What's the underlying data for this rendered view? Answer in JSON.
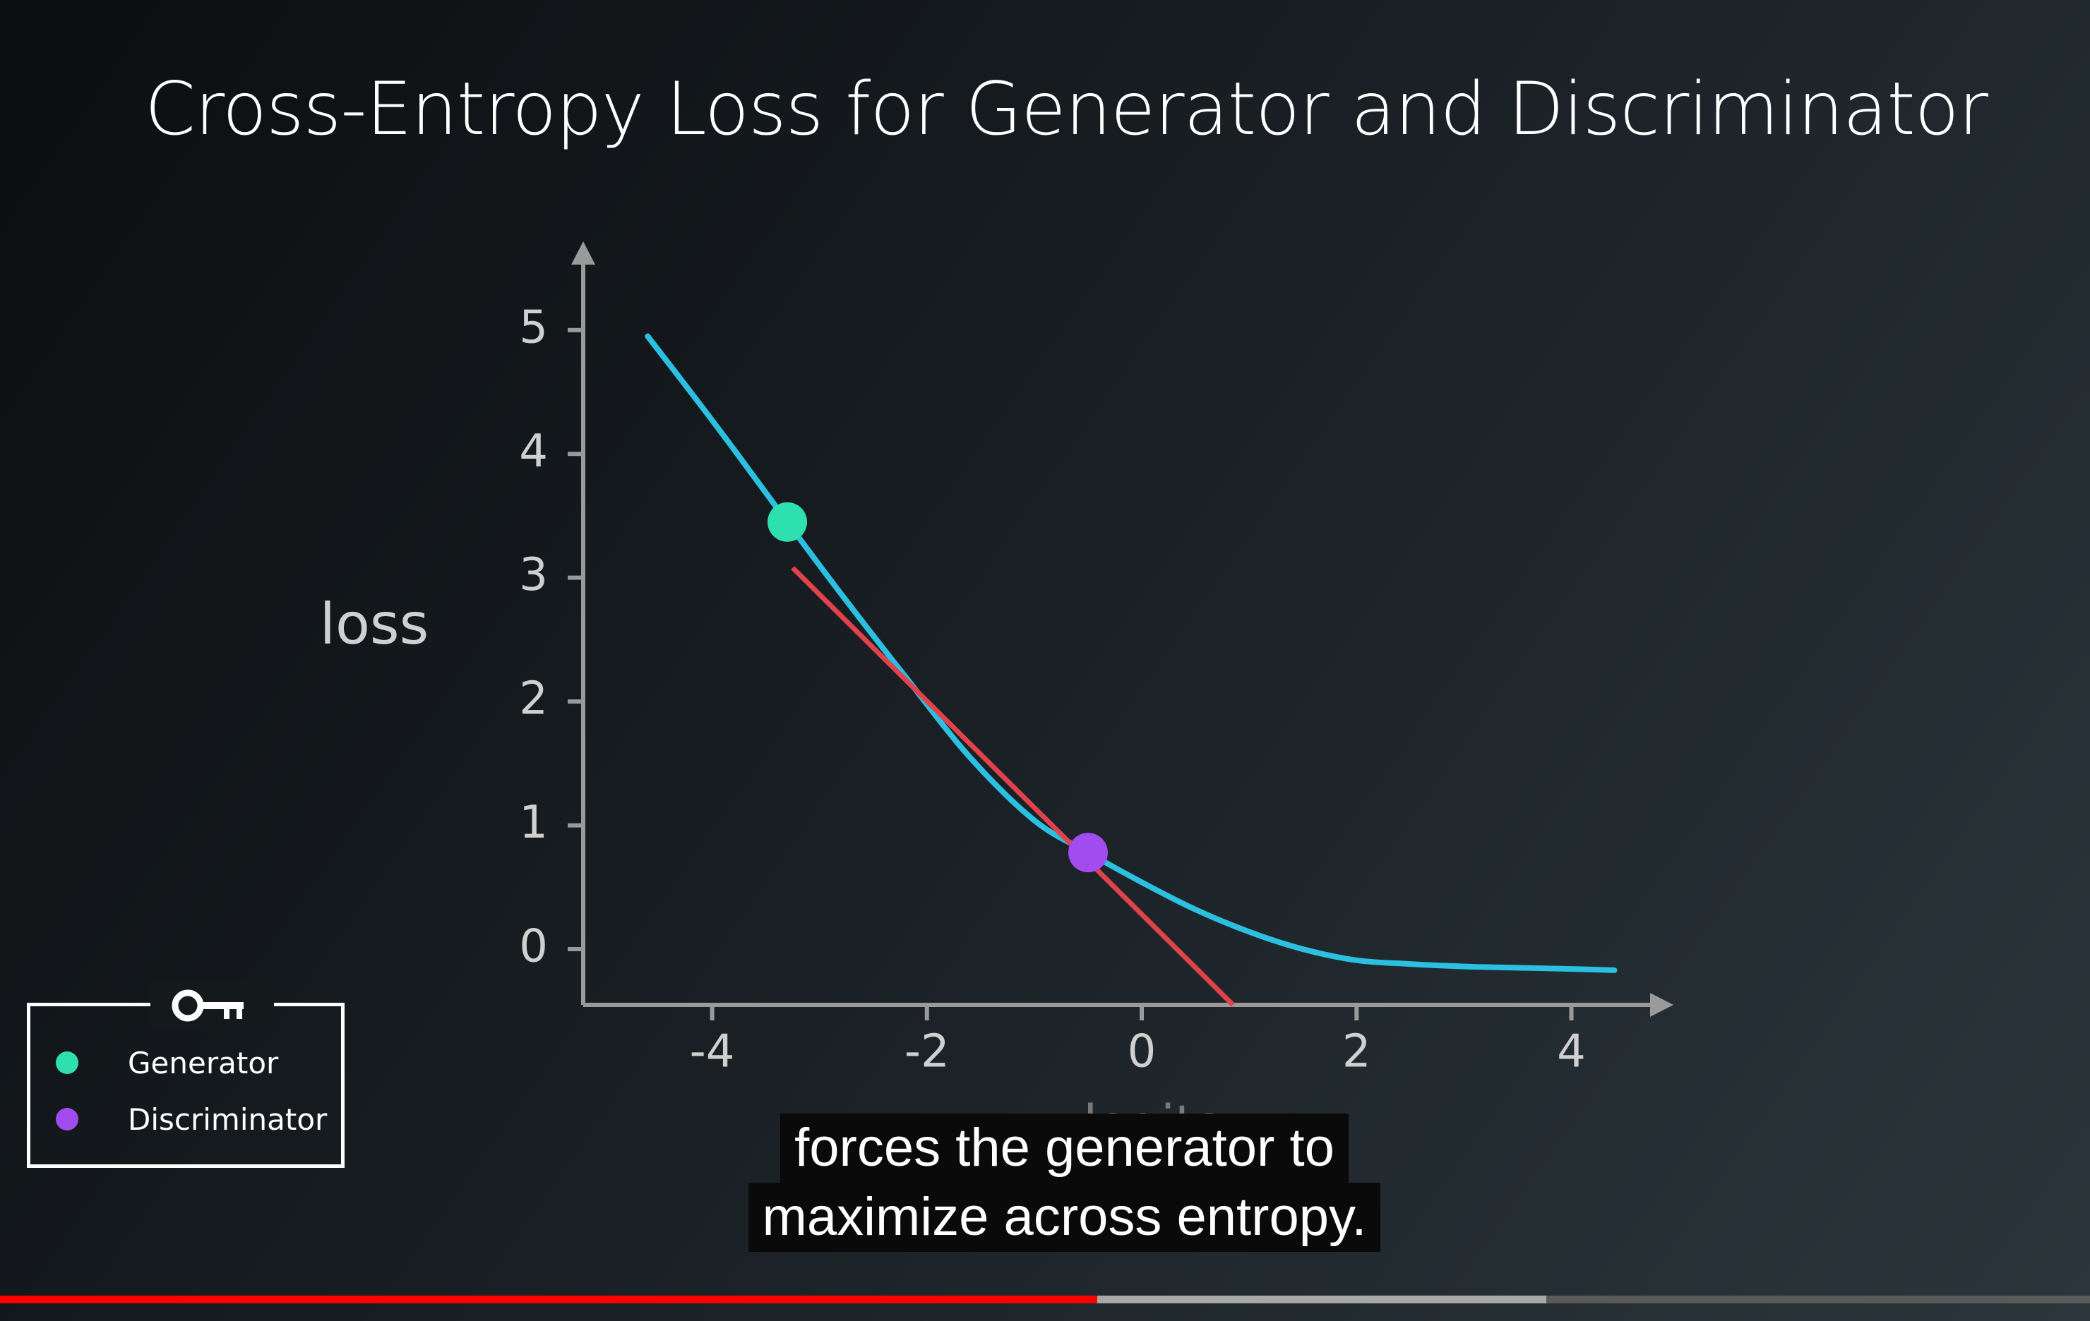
{
  "slide": {
    "title": "Cross-Entropy Loss for Generator and Discriminator"
  },
  "legend": {
    "icon": "key-icon",
    "items": [
      {
        "label": "Generator",
        "color": "#2ee0b0"
      },
      {
        "label": "Discriminator",
        "color": "#a24bef"
      }
    ]
  },
  "caption": {
    "line1": "forces the generator to",
    "line2": "maximize across entropy."
  },
  "player": {
    "progress_played": 0.525,
    "progress_buffered": 0.74
  },
  "colors": {
    "curve": "#2bbfe0",
    "tangent": "#e0424b",
    "axis": "#9a9a9a"
  },
  "chart_data": {
    "type": "line",
    "title": "Cross-Entropy Loss for Generator and Discriminator",
    "xlabel": "logits",
    "ylabel": "loss",
    "xlim": [
      -5.2,
      4.7
    ],
    "ylim": [
      -0.45,
      5.5
    ],
    "xticks": [
      -4,
      -2,
      0,
      2,
      4
    ],
    "yticks": [
      0,
      1,
      2,
      3,
      4,
      5
    ],
    "grid": false,
    "series": [
      {
        "role": "curve",
        "x": [
          -4.6,
          -4.2,
          -3.8,
          -3.3,
          -2.8,
          -2.2,
          -1.6,
          -1.0,
          -0.5,
          0.0,
          0.5,
          1.0,
          1.5,
          2.0,
          2.5,
          3.0,
          3.5,
          4.0,
          4.4
        ],
        "y": [
          4.95,
          4.5,
          4.04,
          3.45,
          2.87,
          2.2,
          1.55,
          1.04,
          0.78,
          0.54,
          0.32,
          0.14,
          0.0,
          -0.09,
          -0.12,
          -0.14,
          -0.15,
          -0.16,
          -0.17
        ]
      },
      {
        "role": "tangent",
        "x": [
          -3.25,
          0.85
        ],
        "y": [
          3.08,
          -0.45
        ]
      }
    ],
    "points": [
      {
        "name": "Generator",
        "x": -3.3,
        "y": 3.45
      },
      {
        "name": "Discriminator",
        "x": -0.5,
        "y": 0.78
      }
    ]
  }
}
